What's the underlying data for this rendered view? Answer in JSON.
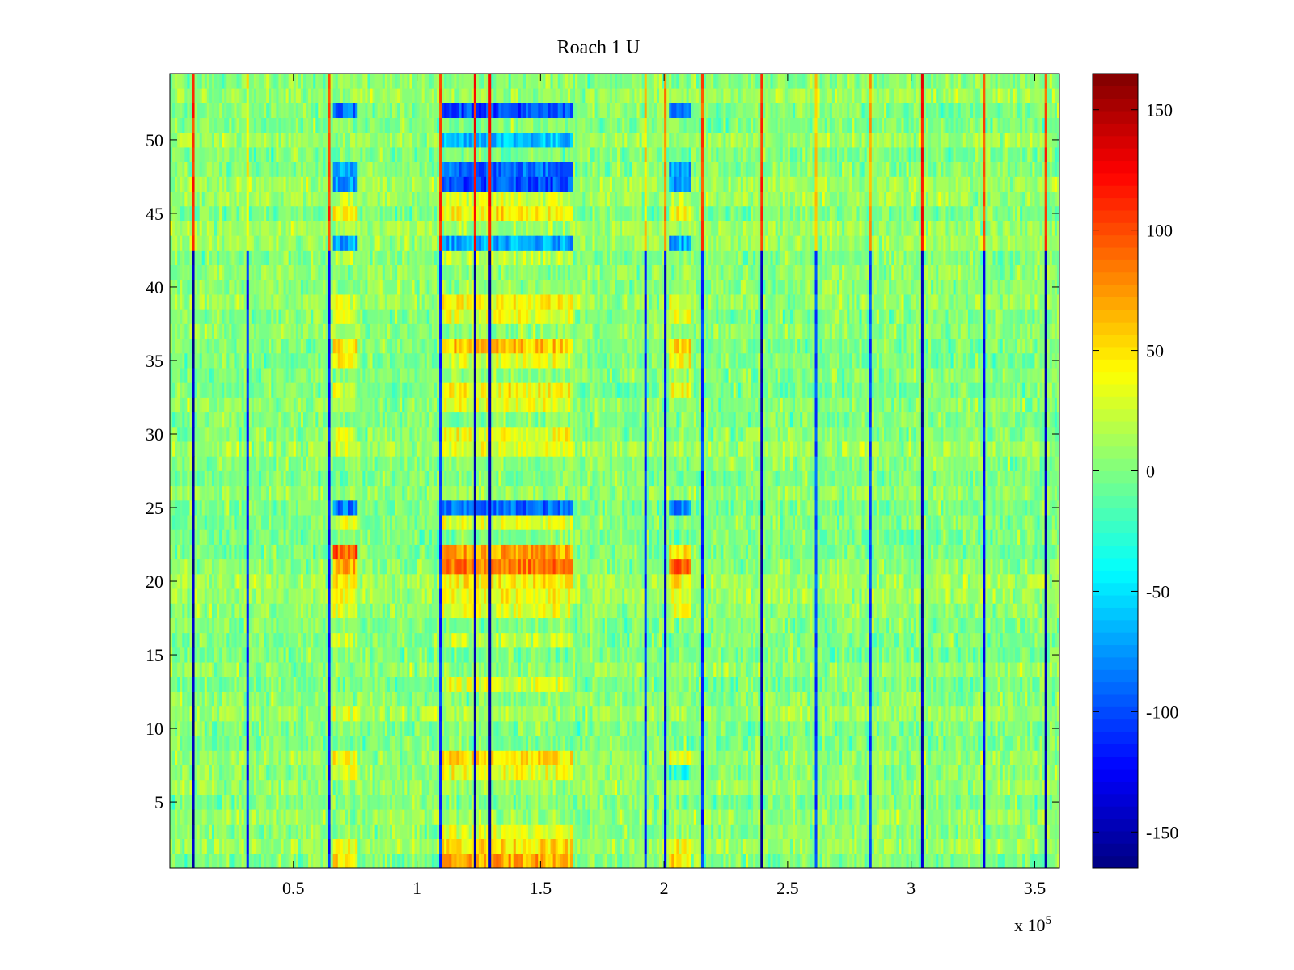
{
  "chart_data": {
    "type": "heatmap",
    "title": "Roach 1 U",
    "xlabel": "",
    "ylabel": "",
    "x_exponent_label": "x 10",
    "x_exponent_power": "5",
    "xlim": [
      0,
      3.6
    ],
    "ylim": [
      0.5,
      54.5
    ],
    "x_ticks": [
      0.5,
      1,
      1.5,
      2,
      2.5,
      3,
      3.5
    ],
    "x_tick_labels": [
      "0.5",
      "1",
      "1.5",
      "2",
      "2.5",
      "3",
      "3.5"
    ],
    "y_ticks": [
      5,
      10,
      15,
      20,
      25,
      30,
      35,
      40,
      45,
      50
    ],
    "y_tick_labels": [
      "5",
      "10",
      "15",
      "20",
      "25",
      "30",
      "35",
      "40",
      "45",
      "50"
    ],
    "rows": 54,
    "columns": 360,
    "colormap": "jet",
    "clim": [
      -165,
      165
    ],
    "colorbar": {
      "ticks": [
        150,
        100,
        50,
        0,
        -50,
        -100,
        -150
      ],
      "tick_labels": [
        "150",
        "100",
        "50",
        "0",
        "-50",
        "-100",
        "-150"
      ],
      "levels": 64,
      "placement": "right"
    },
    "background_mean": 5,
    "background_noise": 22,
    "vertical_spike_lines_x1e5": [
      0.09,
      0.31,
      0.645,
      1.095,
      1.23,
      1.29,
      1.92,
      2.0,
      2.155,
      2.39,
      2.61,
      2.835,
      3.05,
      3.29,
      3.545
    ],
    "spike_values_upper_rows": [
      110,
      40,
      100,
      110,
      120,
      120,
      60,
      80,
      100,
      110,
      60,
      70,
      120,
      100,
      100
    ],
    "spike_values_lower_rows": [
      -150,
      -110,
      -120,
      -110,
      -150,
      -150,
      -110,
      -130,
      -110,
      -150,
      -100,
      -100,
      -150,
      -120,
      -150
    ],
    "activity_blocks": [
      {
        "x_range_1e5": [
          0.66,
          0.76
        ],
        "row_values": {
          "1": 50,
          "2": 40,
          "7": 30,
          "8": 40,
          "11": 30,
          "16": 20,
          "18": 30,
          "19": 35,
          "20": 40,
          "21": 70,
          "22": 95,
          "24": 30,
          "25": -85,
          "29": 30,
          "30": 30,
          "33": 30,
          "35": 45,
          "36": 45,
          "38": 30,
          "39": 30,
          "42": 20,
          "43": -70,
          "45": 40,
          "46": 20,
          "47": -70,
          "48": -70,
          "52": -85
        }
      },
      {
        "x_range_1e5": [
          1.1,
          1.63
        ],
        "row_values": {
          "1": 70,
          "2": 50,
          "3": 30,
          "7": 35,
          "8": 50,
          "13": 30,
          "16": 20,
          "18": 30,
          "19": 40,
          "20": 45,
          "21": 85,
          "22": 70,
          "24": 30,
          "25": -90,
          "29": 35,
          "30": 35,
          "32": 35,
          "33": 40,
          "35": 30,
          "36": 60,
          "38": 35,
          "39": 40,
          "42": 20,
          "43": -70,
          "45": 45,
          "46": 25,
          "47": -100,
          "48": -90,
          "50": -60,
          "52": -100
        }
      },
      {
        "x_range_1e5": [
          2.02,
          2.11
        ],
        "row_values": {
          "1": 50,
          "2": 40,
          "7": -30,
          "8": 40,
          "18": 30,
          "19": 35,
          "20": 40,
          "21": 95,
          "22": 50,
          "25": -85,
          "33": 35,
          "35": 40,
          "36": 55,
          "38": 30,
          "39": 30,
          "43": -70,
          "45": 40,
          "46": 20,
          "47": -80,
          "48": -70,
          "52": -85
        }
      }
    ]
  }
}
